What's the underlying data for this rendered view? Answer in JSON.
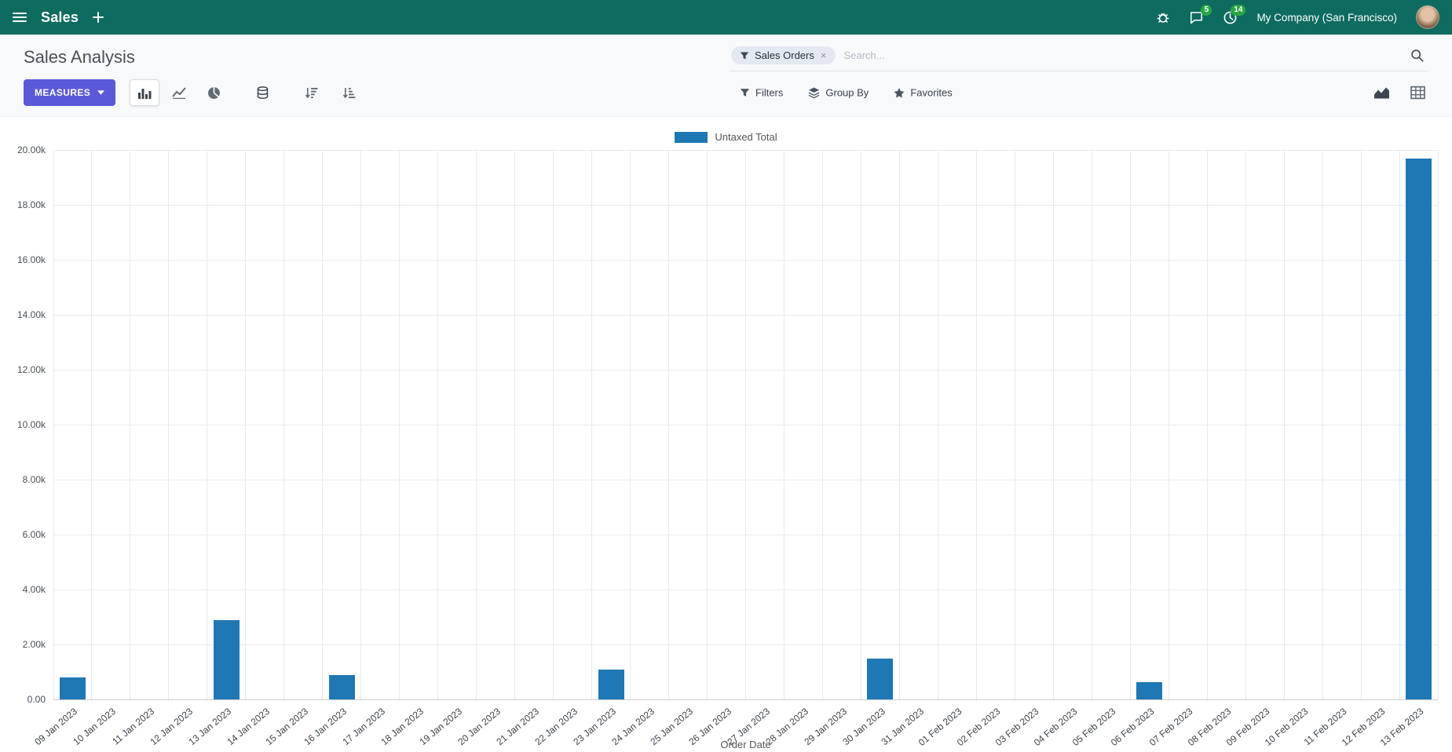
{
  "topbar": {
    "app_name": "Sales",
    "company": "My Company (San Francisco)",
    "messages_badge": "5",
    "activities_badge": "14"
  },
  "control_panel": {
    "title": "Sales Analysis",
    "measures_label": "MEASURES",
    "search": {
      "facet_label": "Sales Orders",
      "facet_remove": "×",
      "placeholder": "Search..."
    },
    "filters_label": "Filters",
    "group_by_label": "Group By",
    "favorites_label": "Favorites"
  },
  "colors": {
    "navbar_bg": "#0e6b60",
    "primary_button": "#5a5ad8",
    "bar_blue": "#1f77b4",
    "badge_green": "#28a745"
  },
  "chart_data": {
    "type": "bar",
    "title": "",
    "xlabel": "Order Date",
    "ylabel": "",
    "ylim": [
      0,
      20000
    ],
    "ytick_step": 2000,
    "ytick_labels": [
      "0.00",
      "2.00k",
      "4.00k",
      "6.00k",
      "8.00k",
      "10.00k",
      "12.00k",
      "14.00k",
      "16.00k",
      "18.00k",
      "20.00k"
    ],
    "grid": true,
    "legend_position": "top",
    "categories": [
      "09 Jan 2023",
      "10 Jan 2023",
      "11 Jan 2023",
      "12 Jan 2023",
      "13 Jan 2023",
      "14 Jan 2023",
      "15 Jan 2023",
      "16 Jan 2023",
      "17 Jan 2023",
      "18 Jan 2023",
      "19 Jan 2023",
      "20 Jan 2023",
      "21 Jan 2023",
      "22 Jan 2023",
      "23 Jan 2023",
      "24 Jan 2023",
      "25 Jan 2023",
      "26 Jan 2023",
      "27 Jan 2023",
      "28 Jan 2023",
      "29 Jan 2023",
      "30 Jan 2023",
      "31 Jan 2023",
      "01 Feb 2023",
      "02 Feb 2023",
      "03 Feb 2023",
      "04 Feb 2023",
      "05 Feb 2023",
      "06 Feb 2023",
      "07 Feb 2023",
      "08 Feb 2023",
      "09 Feb 2023",
      "10 Feb 2023",
      "11 Feb 2023",
      "12 Feb 2023",
      "13 Feb 2023"
    ],
    "series": [
      {
        "name": "Untaxed Total",
        "color": "#1f77b4",
        "values": [
          800,
          0,
          0,
          0,
          2900,
          0,
          0,
          900,
          0,
          0,
          0,
          0,
          0,
          0,
          1080,
          0,
          0,
          0,
          0,
          0,
          0,
          1500,
          0,
          0,
          0,
          0,
          0,
          0,
          640,
          0,
          0,
          0,
          0,
          0,
          0,
          19700
        ]
      }
    ]
  }
}
